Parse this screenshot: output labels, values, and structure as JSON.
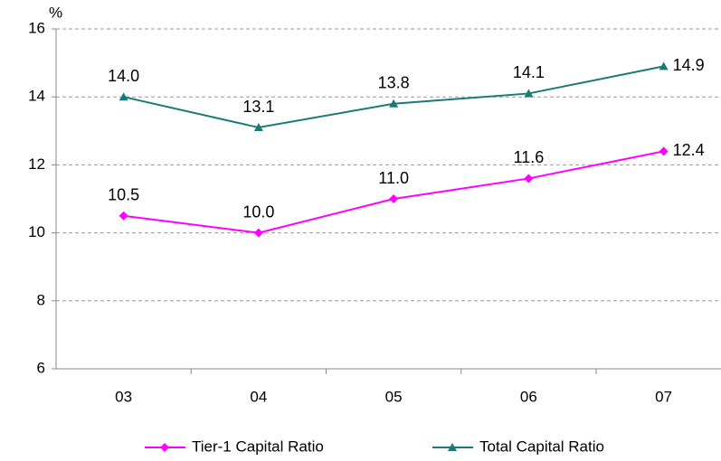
{
  "chart_data": {
    "type": "line",
    "y_label": "%",
    "categories": [
      "03",
      "04",
      "05",
      "06",
      "07"
    ],
    "series": [
      {
        "name": "Tier-1 Capital Ratio",
        "color": "#ff00ff",
        "marker": "diamond",
        "values": [
          10.5,
          10.0,
          11.0,
          11.6,
          12.4
        ],
        "value_labels": [
          "10.5",
          "10.0",
          "11.0",
          "11.6",
          "12.4"
        ]
      },
      {
        "name": "Total Capital Ratio",
        "color": "#1b7a78",
        "marker": "triangle",
        "values": [
          14.0,
          13.1,
          13.8,
          14.1,
          14.9
        ],
        "value_labels": [
          "14.0",
          "13.1",
          "13.8",
          "14.1",
          "14.9"
        ]
      }
    ],
    "ylim": [
      6,
      16
    ],
    "yticks": [
      6,
      8,
      10,
      12,
      14,
      16
    ],
    "grid": true,
    "legend": "bottom"
  }
}
